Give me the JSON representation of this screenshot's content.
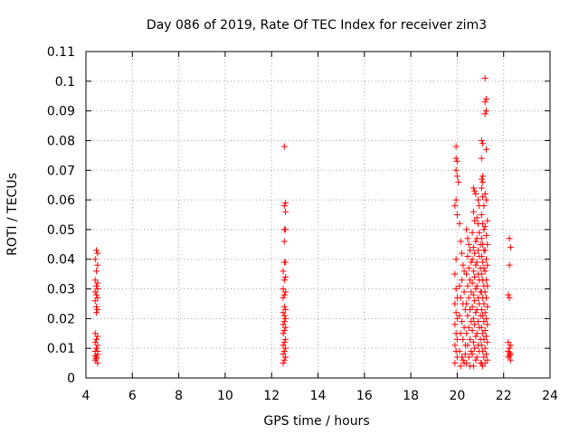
{
  "chart_data": {
    "type": "scatter",
    "title": "Day 086 of 2019, Rate Of TEC Index for receiver zim3",
    "xlabel": "GPS time / hours",
    "ylabel": "ROTI / TECUs",
    "xlim": [
      4,
      24
    ],
    "ylim": [
      0,
      0.11
    ],
    "xticks": [
      4,
      6,
      8,
      10,
      12,
      14,
      16,
      18,
      20,
      22,
      24
    ],
    "yticks": [
      "0",
      "0.01",
      "0.02",
      "0.03",
      "0.04",
      "0.05",
      "0.06",
      "0.07",
      "0.08",
      "0.09",
      "0.1",
      "0.11"
    ],
    "grid": true,
    "marker": "+",
    "color": "#ff0000",
    "series": [
      {
        "name": "ROTI",
        "points": [
          [
            4.45,
            0.043
          ],
          [
            4.5,
            0.042
          ],
          [
            4.4,
            0.04
          ],
          [
            4.5,
            0.038
          ],
          [
            4.45,
            0.036
          ],
          [
            4.4,
            0.033
          ],
          [
            4.5,
            0.032
          ],
          [
            4.45,
            0.031
          ],
          [
            4.5,
            0.03
          ],
          [
            4.4,
            0.029
          ],
          [
            4.45,
            0.028
          ],
          [
            4.5,
            0.027
          ],
          [
            4.4,
            0.026
          ],
          [
            4.45,
            0.024
          ],
          [
            4.5,
            0.023
          ],
          [
            4.45,
            0.022
          ],
          [
            4.4,
            0.015
          ],
          [
            4.5,
            0.014
          ],
          [
            4.45,
            0.013
          ],
          [
            4.4,
            0.012
          ],
          [
            4.5,
            0.011
          ],
          [
            4.45,
            0.01
          ],
          [
            4.4,
            0.009
          ],
          [
            4.5,
            0.008
          ],
          [
            4.45,
            0.007
          ],
          [
            4.4,
            0.006
          ],
          [
            4.5,
            0.005
          ],
          [
            4.45,
            0.0065
          ],
          [
            4.5,
            0.009
          ],
          [
            4.4,
            0.0075
          ],
          [
            12.55,
            0.078
          ],
          [
            12.6,
            0.059
          ],
          [
            12.55,
            0.058
          ],
          [
            12.6,
            0.056
          ],
          [
            12.55,
            0.05
          ],
          [
            12.6,
            0.05
          ],
          [
            12.55,
            0.046
          ],
          [
            12.6,
            0.039
          ],
          [
            12.55,
            0.039
          ],
          [
            12.5,
            0.036
          ],
          [
            12.6,
            0.034
          ],
          [
            12.55,
            0.033
          ],
          [
            12.5,
            0.03
          ],
          [
            12.6,
            0.029
          ],
          [
            12.55,
            0.028
          ],
          [
            12.5,
            0.027
          ],
          [
            12.55,
            0.024
          ],
          [
            12.6,
            0.023
          ],
          [
            12.5,
            0.022
          ],
          [
            12.55,
            0.021
          ],
          [
            12.6,
            0.02
          ],
          [
            12.55,
            0.019
          ],
          [
            12.5,
            0.018
          ],
          [
            12.6,
            0.017
          ],
          [
            12.55,
            0.016
          ],
          [
            12.5,
            0.015
          ],
          [
            12.6,
            0.013
          ],
          [
            12.55,
            0.012
          ],
          [
            12.5,
            0.011
          ],
          [
            12.6,
            0.01
          ],
          [
            12.55,
            0.009
          ],
          [
            12.5,
            0.008
          ],
          [
            12.6,
            0.007
          ],
          [
            12.55,
            0.006
          ],
          [
            12.5,
            0.005
          ],
          [
            19.95,
            0.078
          ],
          [
            19.95,
            0.074
          ],
          [
            20.0,
            0.073
          ],
          [
            19.95,
            0.07
          ],
          [
            20.0,
            0.068
          ],
          [
            20.05,
            0.066
          ],
          [
            19.95,
            0.06
          ],
          [
            19.9,
            0.058
          ],
          [
            20.0,
            0.055
          ],
          [
            19.95,
            0.04
          ],
          [
            19.9,
            0.035
          ],
          [
            19.95,
            0.03
          ],
          [
            20.0,
            0.027
          ],
          [
            19.9,
            0.025
          ],
          [
            19.95,
            0.022
          ],
          [
            20.0,
            0.02
          ],
          [
            19.9,
            0.018
          ],
          [
            19.95,
            0.015
          ],
          [
            20.0,
            0.013
          ],
          [
            19.9,
            0.011
          ],
          [
            19.95,
            0.009
          ],
          [
            20.0,
            0.007
          ],
          [
            19.9,
            0.005
          ],
          [
            20.1,
            0.052
          ],
          [
            20.15,
            0.046
          ],
          [
            20.2,
            0.042
          ],
          [
            20.25,
            0.038
          ],
          [
            20.3,
            0.036
          ],
          [
            20.2,
            0.033
          ],
          [
            20.1,
            0.031
          ],
          [
            20.3,
            0.029
          ],
          [
            20.15,
            0.027
          ],
          [
            20.25,
            0.025
          ],
          [
            20.35,
            0.023
          ],
          [
            20.1,
            0.021
          ],
          [
            20.2,
            0.019
          ],
          [
            20.3,
            0.017
          ],
          [
            20.15,
            0.015
          ],
          [
            20.25,
            0.013
          ],
          [
            20.35,
            0.011
          ],
          [
            20.1,
            0.009
          ],
          [
            20.2,
            0.007
          ],
          [
            20.3,
            0.005
          ],
          [
            20.15,
            0.004
          ],
          [
            20.25,
            0.006
          ],
          [
            20.35,
            0.008
          ],
          [
            20.4,
            0.05
          ],
          [
            20.45,
            0.047
          ],
          [
            20.5,
            0.045
          ],
          [
            20.55,
            0.043
          ],
          [
            20.45,
            0.041
          ],
          [
            20.6,
            0.039
          ],
          [
            20.5,
            0.037
          ],
          [
            20.4,
            0.035
          ],
          [
            20.55,
            0.033
          ],
          [
            20.45,
            0.031
          ],
          [
            20.6,
            0.029
          ],
          [
            20.5,
            0.027
          ],
          [
            20.4,
            0.025
          ],
          [
            20.55,
            0.023
          ],
          [
            20.45,
            0.021
          ],
          [
            20.6,
            0.019
          ],
          [
            20.5,
            0.017
          ],
          [
            20.4,
            0.015
          ],
          [
            20.55,
            0.013
          ],
          [
            20.45,
            0.011
          ],
          [
            20.6,
            0.009
          ],
          [
            20.5,
            0.007
          ],
          [
            20.4,
            0.005
          ],
          [
            20.55,
            0.004
          ],
          [
            20.7,
            0.064
          ],
          [
            20.75,
            0.063
          ],
          [
            20.8,
            0.062
          ],
          [
            20.7,
            0.056
          ],
          [
            20.75,
            0.053
          ],
          [
            20.65,
            0.049
          ],
          [
            20.8,
            0.046
          ],
          [
            20.7,
            0.044
          ],
          [
            20.75,
            0.042
          ],
          [
            20.65,
            0.04
          ],
          [
            20.8,
            0.038
          ],
          [
            20.7,
            0.036
          ],
          [
            20.75,
            0.034
          ],
          [
            20.65,
            0.032
          ],
          [
            20.8,
            0.03
          ],
          [
            20.7,
            0.028
          ],
          [
            20.75,
            0.026
          ],
          [
            20.65,
            0.024
          ],
          [
            20.8,
            0.022
          ],
          [
            20.7,
            0.02
          ],
          [
            20.75,
            0.018
          ],
          [
            20.65,
            0.016
          ],
          [
            20.8,
            0.014
          ],
          [
            20.7,
            0.012
          ],
          [
            20.75,
            0.01
          ],
          [
            20.65,
            0.008
          ],
          [
            20.8,
            0.006
          ],
          [
            20.7,
            0.004
          ],
          [
            20.9,
            0.06
          ],
          [
            20.95,
            0.058
          ],
          [
            20.85,
            0.054
          ],
          [
            20.9,
            0.052
          ],
          [
            20.95,
            0.049
          ],
          [
            20.85,
            0.047
          ],
          [
            21.0,
            0.045
          ],
          [
            20.9,
            0.043
          ],
          [
            20.95,
            0.041
          ],
          [
            20.85,
            0.039
          ],
          [
            21.0,
            0.037
          ],
          [
            20.9,
            0.035
          ],
          [
            20.95,
            0.033
          ],
          [
            20.85,
            0.031
          ],
          [
            21.0,
            0.029
          ],
          [
            20.9,
            0.027
          ],
          [
            20.95,
            0.025
          ],
          [
            20.85,
            0.023
          ],
          [
            21.0,
            0.021
          ],
          [
            20.9,
            0.019
          ],
          [
            20.95,
            0.017
          ],
          [
            20.85,
            0.015
          ],
          [
            21.0,
            0.013
          ],
          [
            20.9,
            0.011
          ],
          [
            20.95,
            0.009
          ],
          [
            20.85,
            0.007
          ],
          [
            21.0,
            0.005
          ],
          [
            21.05,
            0.08
          ],
          [
            21.1,
            0.079
          ],
          [
            21.05,
            0.074
          ],
          [
            21.1,
            0.068
          ],
          [
            21.05,
            0.067
          ],
          [
            21.1,
            0.066
          ],
          [
            21.05,
            0.064
          ],
          [
            21.1,
            0.061
          ],
          [
            21.15,
            0.058
          ],
          [
            21.05,
            0.055
          ],
          [
            21.1,
            0.052
          ],
          [
            21.15,
            0.05
          ],
          [
            21.05,
            0.047
          ],
          [
            21.1,
            0.045
          ],
          [
            21.15,
            0.043
          ],
          [
            21.05,
            0.041
          ],
          [
            21.1,
            0.039
          ],
          [
            21.15,
            0.037
          ],
          [
            21.05,
            0.035
          ],
          [
            21.1,
            0.033
          ],
          [
            21.15,
            0.031
          ],
          [
            21.05,
            0.029
          ],
          [
            21.1,
            0.027
          ],
          [
            21.15,
            0.025
          ],
          [
            21.05,
            0.023
          ],
          [
            21.1,
            0.021
          ],
          [
            21.15,
            0.019
          ],
          [
            21.05,
            0.017
          ],
          [
            21.1,
            0.015
          ],
          [
            21.15,
            0.013
          ],
          [
            21.05,
            0.011
          ],
          [
            21.1,
            0.009
          ],
          [
            21.15,
            0.007
          ],
          [
            21.05,
            0.005
          ],
          [
            21.1,
            0.004
          ],
          [
            21.2,
            0.101
          ],
          [
            21.25,
            0.094
          ],
          [
            21.2,
            0.093
          ],
          [
            21.25,
            0.09
          ],
          [
            21.2,
            0.089
          ],
          [
            21.25,
            0.077
          ],
          [
            21.2,
            0.062
          ],
          [
            21.25,
            0.06
          ],
          [
            21.3,
            0.053
          ],
          [
            21.2,
            0.051
          ],
          [
            21.25,
            0.048
          ],
          [
            21.3,
            0.045
          ],
          [
            21.2,
            0.043
          ],
          [
            21.25,
            0.04
          ],
          [
            21.3,
            0.038
          ],
          [
            21.2,
            0.036
          ],
          [
            21.25,
            0.033
          ],
          [
            21.3,
            0.031
          ],
          [
            21.2,
            0.029
          ],
          [
            21.25,
            0.027
          ],
          [
            21.3,
            0.024
          ],
          [
            21.2,
            0.022
          ],
          [
            21.25,
            0.02
          ],
          [
            21.3,
            0.018
          ],
          [
            21.2,
            0.016
          ],
          [
            21.25,
            0.014
          ],
          [
            21.3,
            0.012
          ],
          [
            21.2,
            0.01
          ],
          [
            21.25,
            0.008
          ],
          [
            21.3,
            0.006
          ],
          [
            21.2,
            0.005
          ],
          [
            22.25,
            0.047
          ],
          [
            22.3,
            0.044
          ],
          [
            22.25,
            0.038
          ],
          [
            22.2,
            0.028
          ],
          [
            22.25,
            0.027
          ],
          [
            22.2,
            0.012
          ],
          [
            22.3,
            0.011
          ],
          [
            22.25,
            0.01
          ],
          [
            22.2,
            0.009
          ],
          [
            22.3,
            0.008
          ],
          [
            22.25,
            0.0075
          ],
          [
            22.2,
            0.007
          ],
          [
            22.3,
            0.006
          ],
          [
            22.25,
            0.0085
          ]
        ]
      }
    ]
  }
}
